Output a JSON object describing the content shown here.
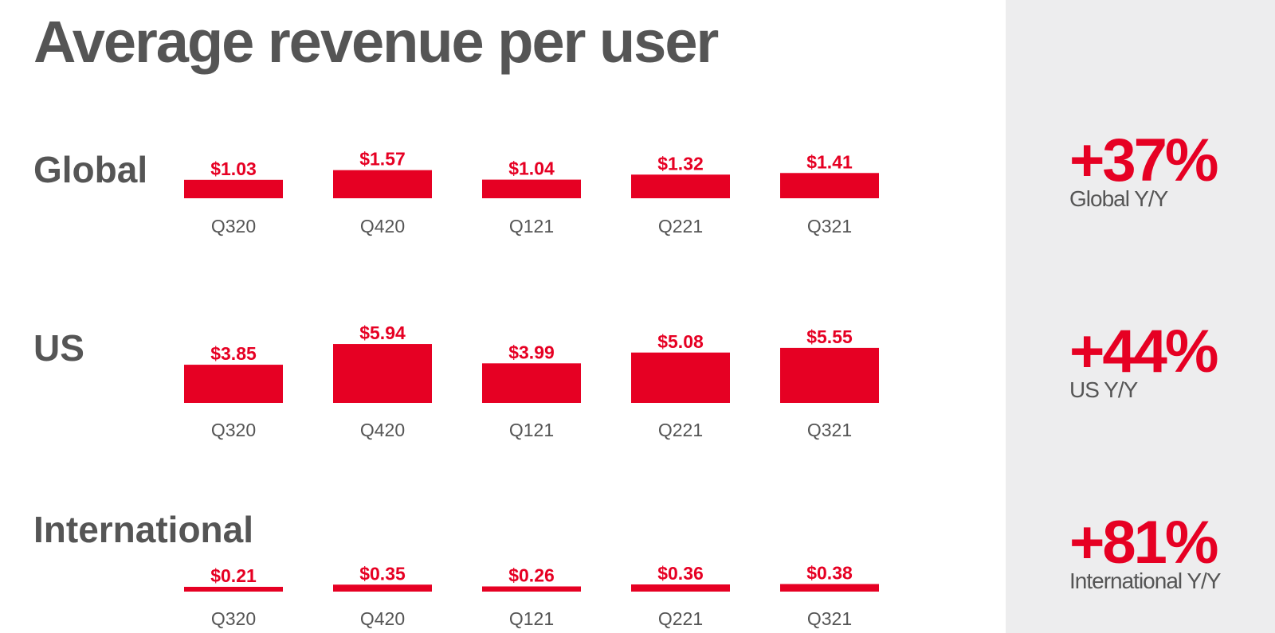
{
  "title": "Average revenue per user",
  "colors": {
    "accent": "#e60023",
    "text": "#555555",
    "panel": "#ededee"
  },
  "chart_data": [
    {
      "type": "bar",
      "title": "Global",
      "categories": [
        "Q320",
        "Q420",
        "Q121",
        "Q221",
        "Q321"
      ],
      "values": [
        1.03,
        1.57,
        1.04,
        1.32,
        1.41
      ],
      "value_labels": [
        "$1.03",
        "$1.57",
        "$1.04",
        "$1.32",
        "$1.41"
      ],
      "xlabel": "",
      "ylabel": "",
      "ylim": [
        0,
        6
      ],
      "grid": false,
      "kpi": {
        "value": "+37%",
        "label": "Global Y/Y"
      }
    },
    {
      "type": "bar",
      "title": "US",
      "categories": [
        "Q320",
        "Q420",
        "Q121",
        "Q221",
        "Q321"
      ],
      "values": [
        3.85,
        5.94,
        3.99,
        5.08,
        5.55
      ],
      "value_labels": [
        "$3.85",
        "$5.94",
        "$3.99",
        "$5.08",
        "$5.55"
      ],
      "xlabel": "",
      "ylabel": "",
      "ylim": [
        0,
        6
      ],
      "grid": false,
      "kpi": {
        "value": "+44%",
        "label": "US Y/Y"
      }
    },
    {
      "type": "bar",
      "title": "International",
      "categories": [
        "Q320",
        "Q420",
        "Q121",
        "Q221",
        "Q321"
      ],
      "values": [
        0.21,
        0.35,
        0.26,
        0.36,
        0.38
      ],
      "value_labels": [
        "$0.21",
        "$0.35",
        "$0.26",
        "$0.36",
        "$0.38"
      ],
      "xlabel": "",
      "ylabel": "",
      "ylim": [
        0,
        6
      ],
      "grid": false,
      "kpi": {
        "value": "+81%",
        "label": "International Y/Y"
      }
    }
  ]
}
